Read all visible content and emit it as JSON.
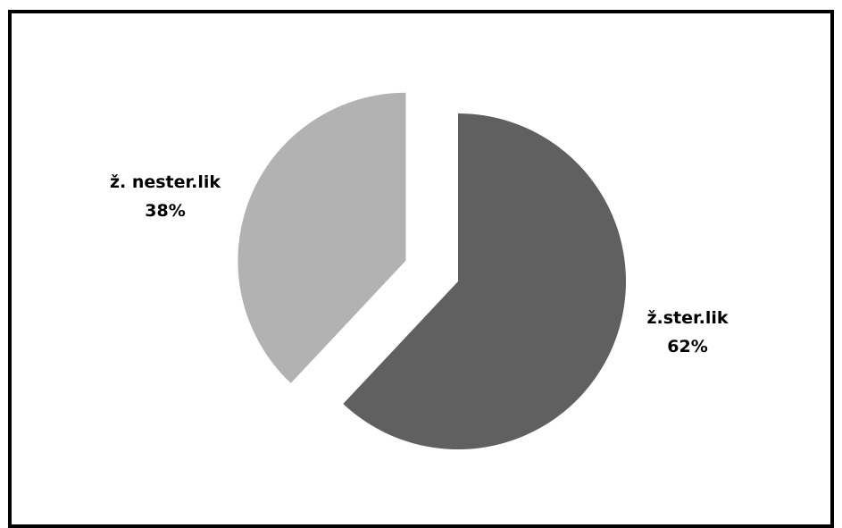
{
  "chart_data": {
    "type": "pie",
    "title": "",
    "slices": [
      {
        "label": "ž.ster.lik",
        "value": 62,
        "value_label": "62%",
        "color": "#606060",
        "exploded": false
      },
      {
        "label": "ž. nester.lik",
        "value": 38,
        "value_label": "38%",
        "color": "#b2b2b2",
        "exploded": true
      }
    ],
    "legend": "none"
  }
}
